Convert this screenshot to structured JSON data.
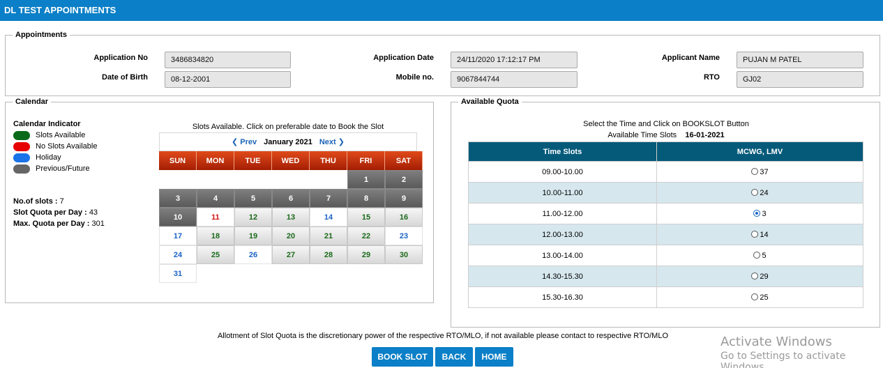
{
  "header": {
    "title": "DL TEST APPOINTMENTS"
  },
  "appointments": {
    "legend": "Appointments",
    "application_no_label": "Application No",
    "application_no": "3486834820",
    "dob_label": "Date of Birth",
    "dob": "08-12-2001",
    "application_date_label": "Application Date",
    "application_date": "24/11/2020 17:12:17 PM",
    "mobile_label": "Mobile no.",
    "mobile": "9067844744",
    "applicant_name_label": "Applicant Name",
    "applicant_name": "PUJAN M PATEL",
    "rto_label": "RTO",
    "rto": "GJ02"
  },
  "calendar": {
    "legend": "Calendar",
    "indicator_title": "Calendar Indicator",
    "indicators": [
      {
        "label": "Slots Available",
        "color": "#0a6a1a"
      },
      {
        "label": "No Slots Available",
        "color": "#e60000"
      },
      {
        "label": "Holiday",
        "color": "#1a73e8"
      },
      {
        "label": "Previous/Future",
        "color": "#666666"
      }
    ],
    "no_of_slots_label": "No.of slots :",
    "no_of_slots": "7",
    "slot_quota_label": "Slot Quota per Day :",
    "slot_quota": "43",
    "max_quota_label": "Max. Quota per Day :",
    "max_quota": "301",
    "caption": "Slots Available. Click on preferable date to Book the Slot",
    "prev_label": "Prev",
    "next_label": "Next",
    "month": "January 2021",
    "weekdays": [
      "SUN",
      "MON",
      "TUE",
      "WED",
      "THU",
      "FRI",
      "SAT"
    ],
    "days": [
      {
        "d": "",
        "s": "empty"
      },
      {
        "d": "",
        "s": "empty"
      },
      {
        "d": "",
        "s": "empty"
      },
      {
        "d": "",
        "s": "empty"
      },
      {
        "d": "",
        "s": "empty"
      },
      {
        "d": "1",
        "s": "past"
      },
      {
        "d": "2",
        "s": "past"
      },
      {
        "d": "3",
        "s": "past"
      },
      {
        "d": "4",
        "s": "past"
      },
      {
        "d": "5",
        "s": "past"
      },
      {
        "d": "6",
        "s": "past"
      },
      {
        "d": "7",
        "s": "past"
      },
      {
        "d": "8",
        "s": "past"
      },
      {
        "d": "9",
        "s": "past"
      },
      {
        "d": "10",
        "s": "past"
      },
      {
        "d": "11",
        "s": "noslot"
      },
      {
        "d": "12",
        "s": "avail"
      },
      {
        "d": "13",
        "s": "avail"
      },
      {
        "d": "14",
        "s": "holiday"
      },
      {
        "d": "15",
        "s": "avail"
      },
      {
        "d": "16",
        "s": "avail"
      },
      {
        "d": "17",
        "s": "holiday"
      },
      {
        "d": "18",
        "s": "avail"
      },
      {
        "d": "19",
        "s": "avail"
      },
      {
        "d": "20",
        "s": "avail"
      },
      {
        "d": "21",
        "s": "avail"
      },
      {
        "d": "22",
        "s": "avail"
      },
      {
        "d": "23",
        "s": "holiday"
      },
      {
        "d": "24",
        "s": "holiday"
      },
      {
        "d": "25",
        "s": "avail"
      },
      {
        "d": "26",
        "s": "holiday"
      },
      {
        "d": "27",
        "s": "avail"
      },
      {
        "d": "28",
        "s": "avail"
      },
      {
        "d": "29",
        "s": "avail"
      },
      {
        "d": "30",
        "s": "avail"
      },
      {
        "d": "31",
        "s": "holiday"
      }
    ]
  },
  "quota": {
    "legend": "Available Quota",
    "instruction": "Select the Time and Click on BOOKSLOT Button",
    "time_slots_label": "Available Time Slots",
    "selected_date": "16-01-2021",
    "col_time": "Time Slots",
    "col_category": "MCWG, LMV",
    "rows": [
      {
        "time": "09.00-10.00",
        "count": "37",
        "selected": false
      },
      {
        "time": "10.00-11.00",
        "count": "24",
        "selected": false
      },
      {
        "time": "11.00-12.00",
        "count": "3",
        "selected": true
      },
      {
        "time": "12.00-13.00",
        "count": "14",
        "selected": false
      },
      {
        "time": "13.00-14.00",
        "count": "5",
        "selected": false
      },
      {
        "time": "14.30-15.30",
        "count": "29",
        "selected": false
      },
      {
        "time": "15.30-16.30",
        "count": "25",
        "selected": false
      }
    ]
  },
  "footer": {
    "notice": "Allotment of Slot Quota is the discretionary power of the respective RTO/MLO, if not available please contact to respective RTO/MLO",
    "book_slot": "BOOK SLOT",
    "back": "BACK",
    "home": "HOME"
  },
  "watermark": {
    "line1": "Activate Windows",
    "line2": "Go to Settings to activate Windows"
  }
}
